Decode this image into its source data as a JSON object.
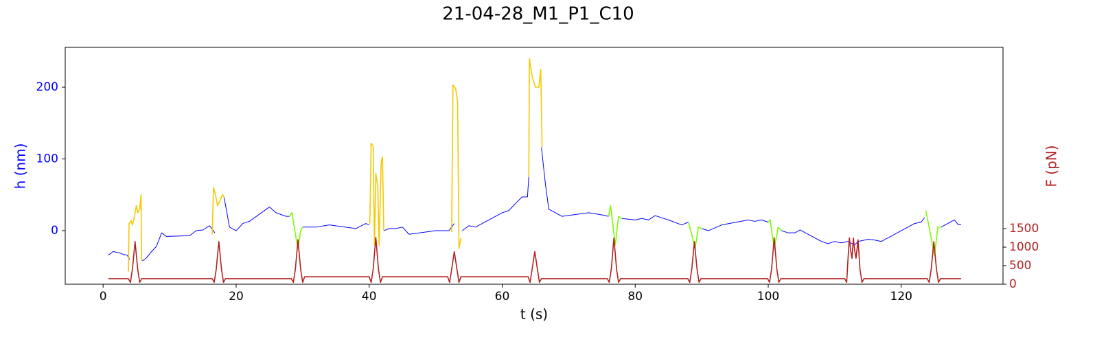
{
  "chart_data": {
    "type": "line",
    "title": "21-04-28_M1_P1_C10",
    "xlabel": "t (s)",
    "ylabel": "h (nm)",
    "y2label": "F (pN)",
    "ylabel_color": "#0000ff",
    "y2label_color": "#b22222",
    "xlim": [
      -5.7,
      135.3
    ],
    "xticks": [
      0,
      20,
      40,
      60,
      80,
      100,
      120
    ],
    "ylim": [
      -74.6,
      255.5
    ],
    "yticks": [
      0,
      100,
      200
    ],
    "y2lim": [
      0,
      6389
    ],
    "y2ticks": [
      0,
      500,
      1000,
      1500
    ],
    "series": [
      {
        "color": "#0000ff",
        "width": 1,
        "x": [
          0.8,
          1.5,
          2.5,
          3,
          3.6,
          4,
          null,
          5.9,
          6.5,
          7.2,
          8,
          8.8,
          9.5,
          13,
          14,
          15,
          16,
          16.8,
          null,
          18.2,
          19,
          20,
          21,
          22,
          25,
          26,
          27.5,
          28,
          null,
          30,
          32,
          34,
          38,
          39.5,
          40,
          null,
          42.2,
          43,
          44,
          45,
          46,
          50,
          52,
          52.8,
          null,
          54,
          55,
          56,
          58,
          60,
          61,
          62,
          63,
          63.8,
          64,
          null,
          65.9,
          66.5,
          67,
          68,
          69,
          73,
          75,
          76,
          null,
          78,
          80,
          81,
          82,
          83,
          85,
          87,
          88,
          null,
          90,
          91,
          93,
          97,
          98,
          99,
          100,
          null,
          102,
          103,
          104,
          104.8,
          105,
          108,
          109,
          110,
          111,
          112,
          113,
          113.5,
          115,
          116,
          117,
          119,
          122,
          123,
          123.5,
          null,
          126,
          127,
          128,
          128.6,
          129
        ],
        "values": [
          -34,
          -29,
          -31,
          -33,
          -34,
          -40,
          null,
          -42,
          -38,
          -30,
          -22,
          -3,
          -8,
          -7,
          0,
          1,
          7,
          -3,
          null,
          46,
          5,
          0,
          10,
          13,
          33,
          25,
          20,
          20,
          null,
          5,
          5,
          8,
          3,
          10,
          8,
          null,
          0,
          3,
          3,
          5,
          -5,
          0,
          0,
          10,
          null,
          0,
          7,
          5,
          15,
          25,
          28,
          38,
          47,
          47,
          75,
          null,
          116,
          65,
          30,
          25,
          20,
          25,
          22,
          20,
          null,
          17,
          15,
          17,
          15,
          21,
          15,
          8,
          12,
          null,
          3,
          0,
          8,
          15,
          13,
          15,
          12,
          null,
          0,
          -3,
          -3,
          1,
          0,
          -15,
          -18,
          -15,
          -17,
          -15,
          -20,
          -15,
          -12,
          -13,
          -15,
          -5,
          10,
          12,
          18,
          null,
          5,
          10,
          15,
          8,
          9
        ]
      },
      {
        "color": "#f5c800",
        "width": 1.6,
        "x": [
          3.8,
          3.9,
          4.2,
          4.4,
          4.6,
          4.8,
          5.0,
          5.2,
          5.5,
          5.7,
          5.8,
          null,
          16.4,
          16.6,
          16.9,
          17.2,
          17.5,
          17.8,
          18,
          18.2,
          null,
          40.1,
          40.3,
          40.6,
          40.8,
          41,
          41.3,
          41.5,
          41.8,
          42,
          42.2,
          null,
          52.4,
          52.6,
          53,
          53.3,
          53.5,
          53.8,
          null,
          64,
          64.1,
          64.5,
          65,
          65.5,
          65.8,
          66
        ],
        "values": [
          -57,
          10,
          14,
          8,
          15,
          25,
          35,
          25,
          30,
          50,
          -42,
          null,
          -5,
          60,
          50,
          35,
          40,
          48,
          50,
          46,
          null,
          10,
          122,
          118,
          -20,
          80,
          60,
          -20,
          95,
          103,
          0,
          null,
          -2,
          203,
          198,
          180,
          -25,
          -10,
          null,
          75,
          240,
          215,
          200,
          200,
          225,
          116
        ]
      },
      {
        "color": "#7cfc00",
        "width": 1.6,
        "x": [
          28,
          28.4,
          29,
          29.3,
          29.7,
          30,
          null,
          76,
          76.3,
          77,
          77.5,
          78,
          null,
          88,
          88.5,
          89,
          89.5,
          90,
          null,
          100,
          100.3,
          100.9,
          101.5,
          102,
          null,
          123.7,
          124.5,
          125,
          125.5,
          126
        ],
        "values": [
          20,
          25,
          -10,
          -25,
          0,
          5,
          null,
          20,
          35,
          -20,
          20,
          17,
          null,
          12,
          -5,
          -25,
          5,
          3,
          null,
          12,
          15,
          -25,
          5,
          0,
          null,
          28,
          -10,
          -35,
          5,
          5
        ]
      },
      {
        "color": "#b22222",
        "width": 1.6,
        "axis": "y2",
        "x": [
          0.8,
          3.8,
          4.1,
          4.4,
          4.8,
          5.2,
          5.5,
          5.8,
          16.4,
          16.7,
          17,
          17.4,
          17.8,
          18.1,
          18.4,
          28.3,
          28.6,
          28.9,
          29.3,
          29.7,
          30,
          30.3,
          40,
          40.3,
          40.6,
          41,
          41.4,
          41.7,
          42,
          51.8,
          52.1,
          52.4,
          52.8,
          53.2,
          53.5,
          53.8,
          63.9,
          64.2,
          64.5,
          64.9,
          65.3,
          65.6,
          65.9,
          75.8,
          76.1,
          76.4,
          76.8,
          77.2,
          77.5,
          77.8,
          87.9,
          88.2,
          88.5,
          88.9,
          89.3,
          89.6,
          89.9,
          99.9,
          100.2,
          100.5,
          100.9,
          101.3,
          101.6,
          101.9,
          111.5,
          111.8,
          112,
          112.2,
          112.4,
          112.6,
          112.8,
          113,
          113.2,
          113.5,
          113.8,
          114.1,
          114.4,
          123.9,
          124.2,
          124.5,
          124.9,
          125.3,
          125.6,
          125.9,
          129
        ],
        "values": [
          150,
          150,
          50,
          400,
          1150,
          400,
          50,
          150,
          150,
          50,
          400,
          1150,
          400,
          50,
          150,
          150,
          50,
          400,
          1200,
          400,
          50,
          200,
          200,
          50,
          400,
          1260,
          400,
          50,
          200,
          200,
          50,
          400,
          880,
          400,
          50,
          200,
          200,
          50,
          400,
          880,
          400,
          50,
          150,
          150,
          50,
          400,
          1250,
          400,
          50,
          150,
          150,
          50,
          400,
          1150,
          400,
          50,
          150,
          150,
          50,
          400,
          1250,
          400,
          50,
          150,
          150,
          50,
          700,
          1250,
          900,
          700,
          1250,
          900,
          700,
          1200,
          400,
          50,
          150,
          150,
          50,
          400,
          1150,
          400,
          50,
          150,
          150
        ]
      }
    ]
  }
}
